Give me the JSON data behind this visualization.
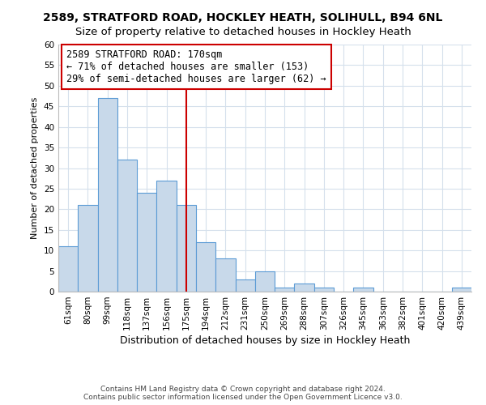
{
  "title": "2589, STRATFORD ROAD, HOCKLEY HEATH, SOLIHULL, B94 6NL",
  "subtitle": "Size of property relative to detached houses in Hockley Heath",
  "xlabel": "Distribution of detached houses by size in Hockley Heath",
  "ylabel": "Number of detached properties",
  "bar_labels": [
    "61sqm",
    "80sqm",
    "99sqm",
    "118sqm",
    "137sqm",
    "156sqm",
    "175sqm",
    "194sqm",
    "212sqm",
    "231sqm",
    "250sqm",
    "269sqm",
    "288sqm",
    "307sqm",
    "326sqm",
    "345sqm",
    "363sqm",
    "382sqm",
    "401sqm",
    "420sqm",
    "439sqm"
  ],
  "bar_values": [
    11,
    21,
    47,
    32,
    24,
    27,
    21,
    12,
    8,
    3,
    5,
    1,
    2,
    1,
    0,
    1,
    0,
    0,
    0,
    0,
    1
  ],
  "bar_color": "#c8d9ea",
  "bar_edge_color": "#5b9bd5",
  "vline_x": 6,
  "vline_color": "#cc0000",
  "annotation_line1": "2589 STRATFORD ROAD: 170sqm",
  "annotation_line2": "← 71% of detached houses are smaller (153)",
  "annotation_line3": "29% of semi-detached houses are larger (62) →",
  "annotation_box_edge": "#cc0000",
  "ylim": [
    0,
    60
  ],
  "yticks": [
    0,
    5,
    10,
    15,
    20,
    25,
    30,
    35,
    40,
    45,
    50,
    55,
    60
  ],
  "footnote_line1": "Contains HM Land Registry data © Crown copyright and database right 2024.",
  "footnote_line2": "Contains public sector information licensed under the Open Government Licence v3.0.",
  "title_fontsize": 10,
  "subtitle_fontsize": 9.5,
  "xlabel_fontsize": 9,
  "ylabel_fontsize": 8,
  "tick_fontsize": 7.5,
  "annotation_fontsize": 8.5,
  "footnote_fontsize": 6.5,
  "grid_color": "#d5e0ec"
}
